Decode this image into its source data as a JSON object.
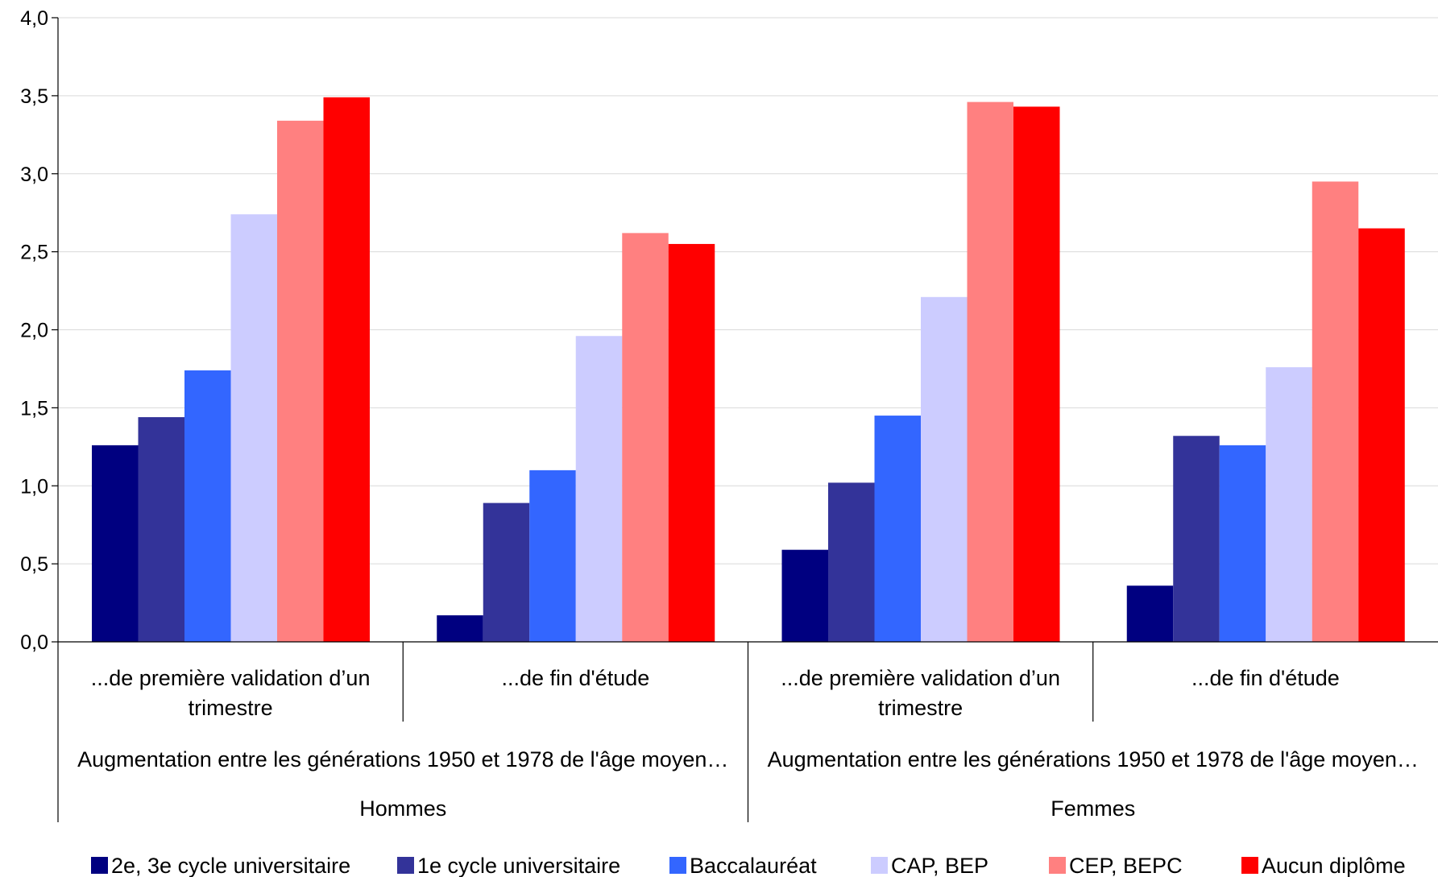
{
  "chart_data": {
    "type": "bar",
    "ylim": [
      0,
      4.0
    ],
    "y_ticks": [
      "0,0",
      "0,5",
      "1,0",
      "1,5",
      "2,0",
      "2,5",
      "3,0",
      "3,5",
      "4,0"
    ],
    "grid": true,
    "legend_position": "bottom",
    "categories": [
      "...de première validation d’un trimestre",
      "...de fin d'étude",
      "...de première validation d’un trimestre",
      "...de fin d'étude"
    ],
    "category_label_lines": [
      [
        "...de première validation d’un",
        "trimestre"
      ],
      [
        "...de fin d'étude"
      ],
      [
        "...de première validation d’un",
        "trimestre"
      ],
      [
        "...de fin d'étude"
      ]
    ],
    "group_level_2": [
      "Augmentation entre les générations 1950 et 1978 de l'âge moyen…",
      "Augmentation entre les générations 1950 et 1978 de l'âge moyen…"
    ],
    "group_level_3": [
      "Hommes",
      "Femmes"
    ],
    "series": [
      {
        "name": "2e, 3e cycle universitaire",
        "color": "#000080",
        "values": [
          1.26,
          0.17,
          0.59,
          0.36
        ]
      },
      {
        "name": "1e cycle universitaire",
        "color": "#333399",
        "values": [
          1.44,
          0.89,
          1.02,
          1.32
        ]
      },
      {
        "name": "Baccalauréat",
        "color": "#3366FF",
        "values": [
          1.74,
          1.1,
          1.45,
          1.26
        ]
      },
      {
        "name": "CAP, BEP",
        "color": "#CCCCFF",
        "values": [
          2.74,
          1.96,
          2.21,
          1.76
        ]
      },
      {
        "name": "CEP, BEPC",
        "color": "#FF8080",
        "values": [
          3.34,
          2.62,
          3.46,
          2.95
        ]
      },
      {
        "name": "Aucun diplôme",
        "color": "#FF0000",
        "values": [
          3.49,
          2.55,
          3.43,
          2.65
        ]
      }
    ]
  }
}
